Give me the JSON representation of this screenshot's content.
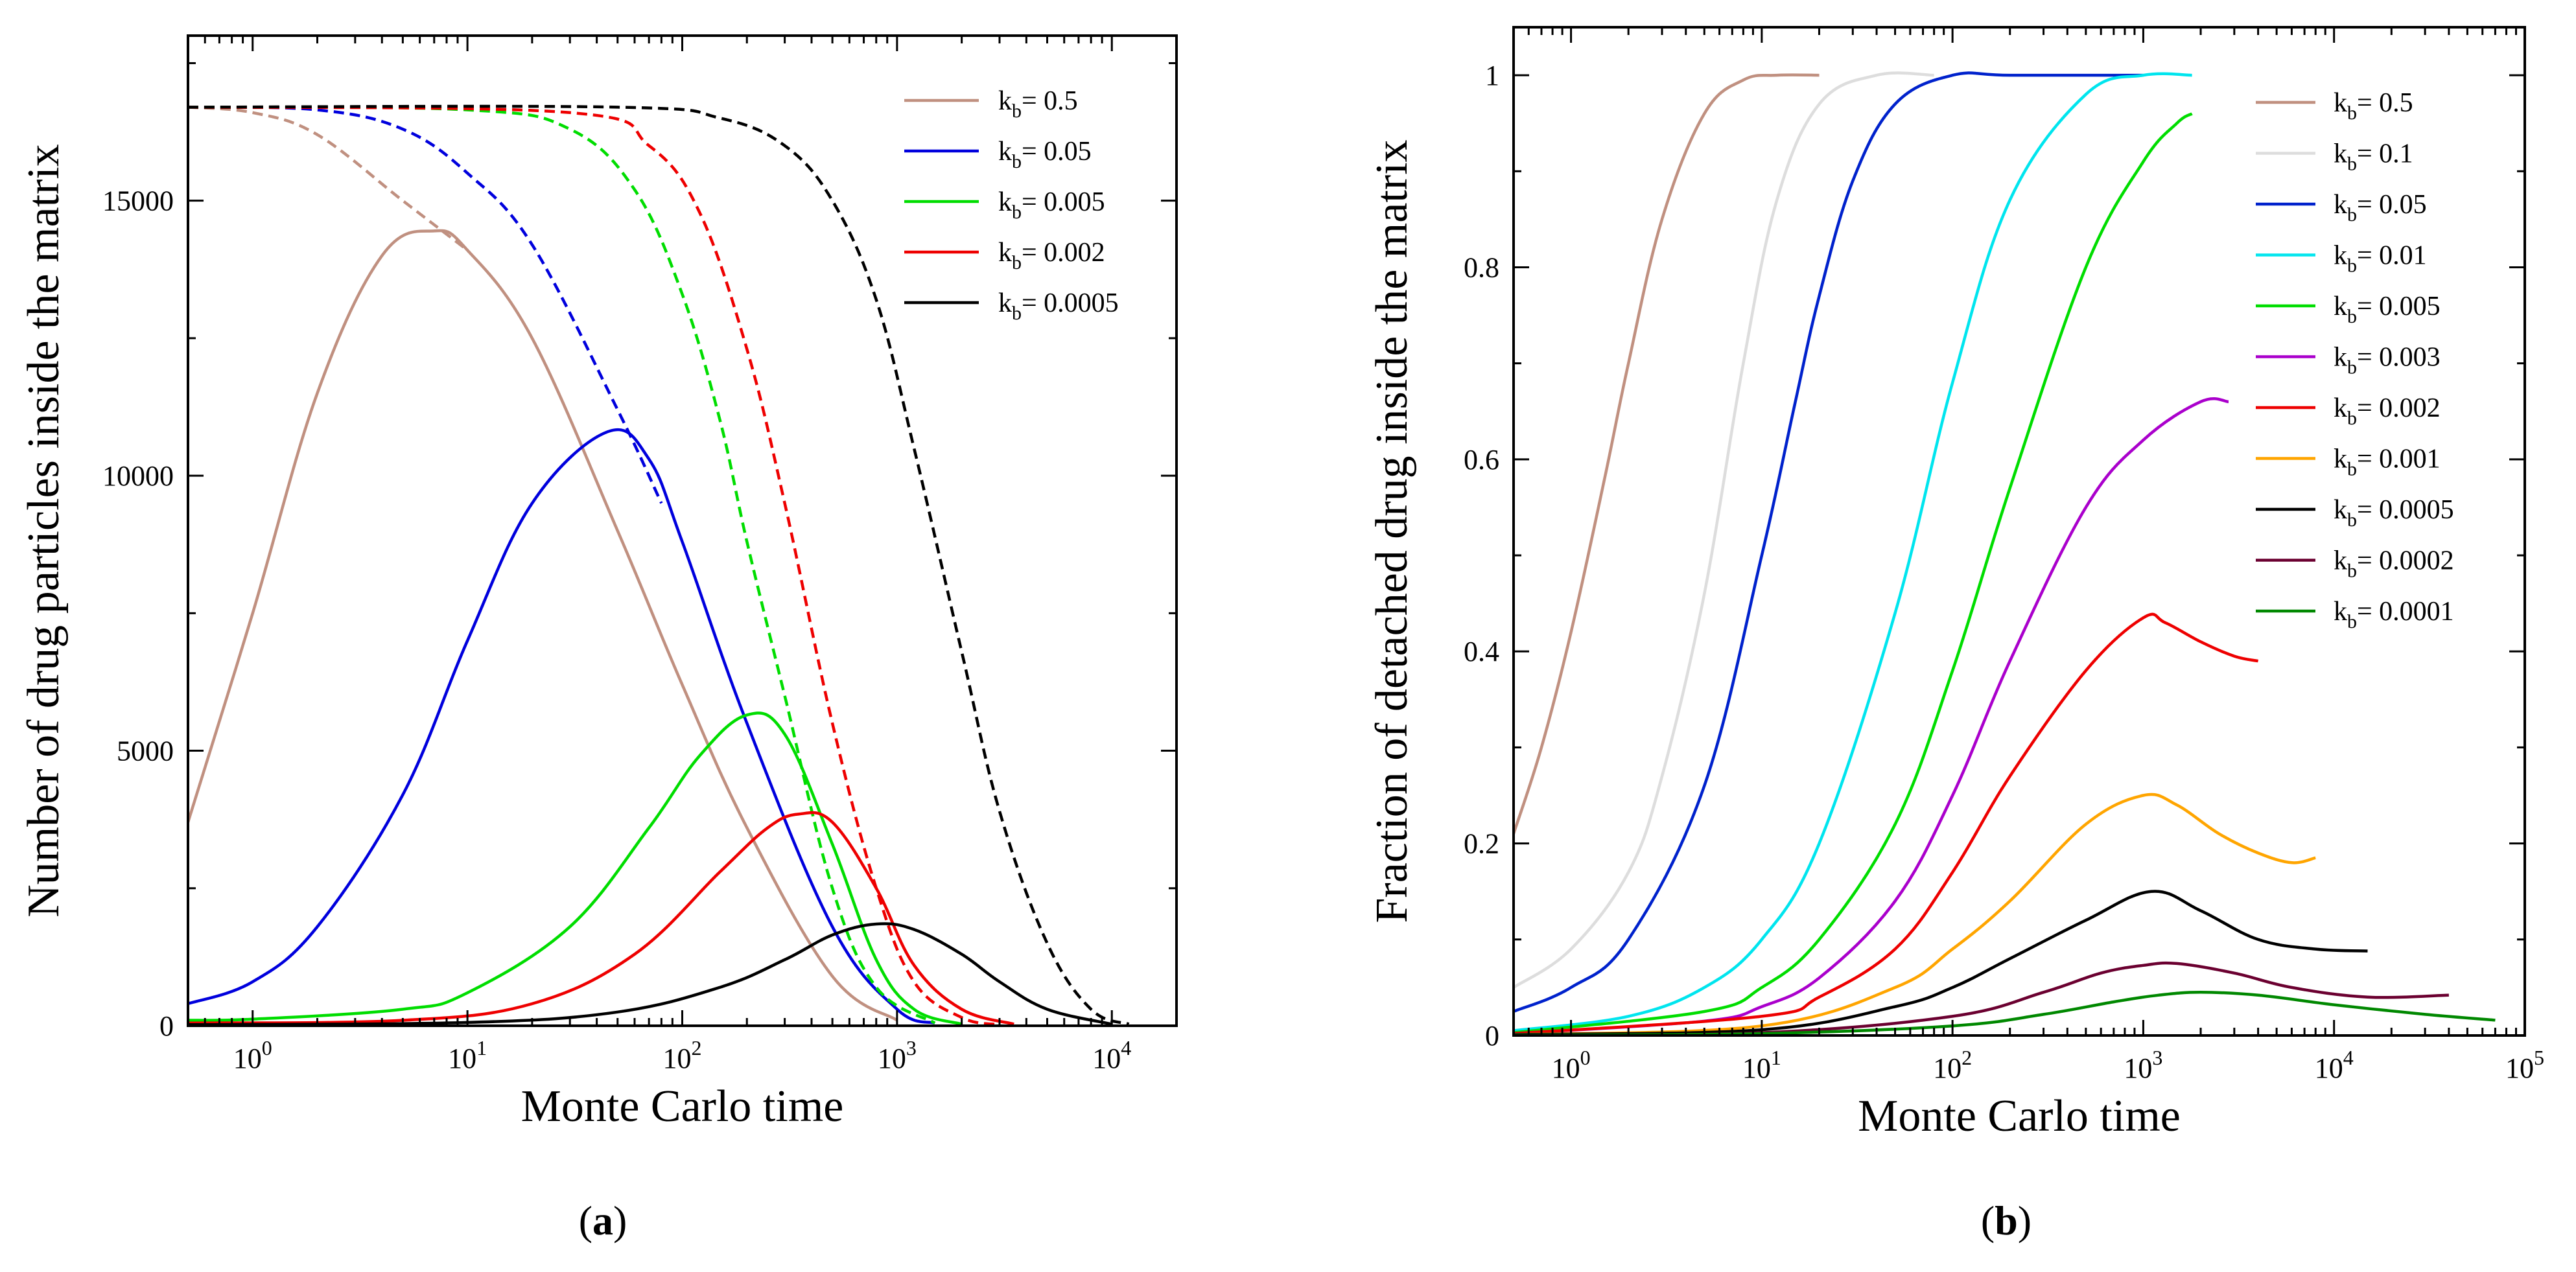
{
  "chart_data": [
    {
      "panel": "(a)",
      "panel_parts": [
        "(",
        "a",
        ")"
      ],
      "type": "line",
      "xscale": "log",
      "xlabel": "Monte Carlo time",
      "ylabel": "Number of drug particles inside the matrix",
      "xlim": [
        0.5,
        20000
      ],
      "ylim": [
        0,
        18000
      ],
      "xticks": [
        {
          "value": 1,
          "exp": "0"
        },
        {
          "value": 10,
          "exp": "1"
        },
        {
          "value": 100,
          "exp": "2"
        },
        {
          "value": 1000,
          "exp": "3"
        },
        {
          "value": 10000,
          "exp": "4"
        }
      ],
      "yticks": [
        {
          "value": 0,
          "label": "0"
        },
        {
          "value": 5000,
          "label": "5000"
        },
        {
          "value": 10000,
          "label": "10000"
        },
        {
          "value": 15000,
          "label": "15000"
        }
      ],
      "legend_position": "top-right",
      "legend": [
        {
          "name": "k",
          "sub": "b",
          "value": "= 0.5",
          "color": "#c09080"
        },
        {
          "name": "k",
          "sub": "b",
          "value": "= 0.05",
          "color": "#0000dd"
        },
        {
          "name": "k",
          "sub": "b",
          "value": "= 0.005",
          "color": "#00dd00"
        },
        {
          "name": "k",
          "sub": "b",
          "value": "= 0.002",
          "color": "#ee0000"
        },
        {
          "name": "k",
          "sub": "b",
          "value": "= 0.0005",
          "color": "#000000"
        }
      ],
      "series": [
        {
          "kb": 0.5,
          "color": "#c09080",
          "style": "solid",
          "x": [
            0.5,
            1,
            2,
            4,
            7,
            10,
            20,
            50,
            100,
            200,
            500,
            1000
          ],
          "y": [
            3700,
            7500,
            11500,
            14000,
            14450,
            14100,
            12500,
            9000,
            6200,
            3600,
            900,
            100
          ]
        },
        {
          "kb": 0.5,
          "color": "#c09080",
          "style": "dashed",
          "x": [
            0.5,
            1,
            2,
            5,
            10
          ],
          "y": [
            16700,
            16600,
            16200,
            15000,
            14100
          ]
        },
        {
          "kb": 0.05,
          "color": "#0000dd",
          "style": "solid",
          "x": [
            0.5,
            1,
            2,
            5,
            10,
            20,
            45,
            70,
            100,
            200,
            500,
            1000,
            1500
          ],
          "y": [
            400,
            800,
            1800,
            4200,
            7000,
            9500,
            10800,
            10300,
            8800,
            5500,
            1800,
            300,
            50
          ]
        },
        {
          "kb": 0.05,
          "color": "#0000dd",
          "style": "dashed",
          "x": [
            0.5,
            2,
            5,
            10,
            20,
            50,
            80
          ],
          "y": [
            16700,
            16650,
            16300,
            15500,
            14200,
            11200,
            9500
          ]
        },
        {
          "kb": 0.005,
          "color": "#00dd00",
          "style": "solid",
          "x": [
            0.5,
            1,
            5,
            10,
            30,
            70,
            120,
            200,
            300,
            500,
            800,
            1200,
            2000
          ],
          "y": [
            100,
            120,
            300,
            600,
            1800,
            3600,
            4900,
            5650,
            5300,
            3300,
            1200,
            300,
            30
          ]
        },
        {
          "kb": 0.005,
          "color": "#00dd00",
          "style": "dashed",
          "x": [
            0.5,
            10,
            30,
            60,
            100,
            150,
            200,
            300,
            500,
            800,
            1500
          ],
          "y": [
            16700,
            16650,
            16300,
            15200,
            13300,
            11000,
            8800,
            6000,
            2500,
            700,
            50
          ]
        },
        {
          "kb": 0.002,
          "color": "#ee0000",
          "style": "solid",
          "x": [
            0.5,
            5,
            20,
            60,
            150,
            250,
            350,
            500,
            800,
            1200,
            2000,
            3500
          ],
          "y": [
            50,
            100,
            400,
            1300,
            2800,
            3600,
            3850,
            3700,
            2500,
            1100,
            300,
            30
          ]
        },
        {
          "kb": 0.002,
          "color": "#ee0000",
          "style": "dashed",
          "x": [
            0.5,
            30,
            70,
            120,
            200,
            300,
            500,
            800,
            1200,
            2000,
            3000
          ],
          "y": [
            16700,
            16600,
            16000,
            14800,
            12300,
            9500,
            5500,
            2500,
            800,
            150,
            20
          ]
        },
        {
          "kb": 0.0005,
          "color": "#000000",
          "style": "solid",
          "x": [
            0.5,
            10,
            50,
            150,
            300,
            500,
            800,
            1200,
            2000,
            3000,
            5000,
            10000
          ],
          "y": [
            20,
            60,
            250,
            700,
            1200,
            1650,
            1850,
            1750,
            1300,
            800,
            300,
            30
          ]
        },
        {
          "kb": 0.0005,
          "color": "#000000",
          "style": "dashed",
          "x": [
            0.5,
            50,
            150,
            300,
            500,
            800,
            1200,
            2000,
            3000,
            5000,
            8000,
            12000
          ],
          "y": [
            16700,
            16700,
            16500,
            16000,
            15000,
            13200,
            10500,
            6800,
            3900,
            1500,
            300,
            30
          ]
        }
      ]
    },
    {
      "panel": "(b)",
      "panel_parts": [
        "(",
        "b",
        ")"
      ],
      "type": "line",
      "xscale": "log",
      "xlabel": "Monte Carlo time",
      "ylabel": "Fraction of detached drug inside the matrix",
      "xlim": [
        0.5,
        100000
      ],
      "ylim": [
        0,
        1.05
      ],
      "xticks": [
        {
          "value": 1,
          "exp": "0"
        },
        {
          "value": 10,
          "exp": "1"
        },
        {
          "value": 100,
          "exp": "2"
        },
        {
          "value": 1000,
          "exp": "3"
        },
        {
          "value": 10000,
          "exp": "4"
        },
        {
          "value": 100000,
          "exp": "5"
        }
      ],
      "yticks": [
        {
          "value": 0,
          "label": "0"
        },
        {
          "value": 0.2,
          "label": "0.2"
        },
        {
          "value": 0.4,
          "label": "0.4"
        },
        {
          "value": 0.6,
          "label": "0.6"
        },
        {
          "value": 0.8,
          "label": "0.8"
        },
        {
          "value": 1,
          "label": "1"
        }
      ],
      "legend_position": "top-right",
      "legend": [
        {
          "name": "k",
          "sub": "b",
          "value": "= 0.5",
          "color": "#c09080"
        },
        {
          "name": "k",
          "sub": "b",
          "value": "= 0.1",
          "color": "#dddddd"
        },
        {
          "name": "k",
          "sub": "b",
          "value": "= 0.05",
          "color": "#0022cc"
        },
        {
          "name": "k",
          "sub": "b",
          "value": "= 0.01",
          "color": "#00e5ee"
        },
        {
          "name": "k",
          "sub": "b",
          "value": "= 0.005",
          "color": "#00dd00"
        },
        {
          "name": "k",
          "sub": "b",
          "value": "= 0.003",
          "color": "#aa00cc"
        },
        {
          "name": "k",
          "sub": "b",
          "value": "= 0.002",
          "color": "#ee0000"
        },
        {
          "name": "k",
          "sub": "b",
          "value": "= 0.001",
          "color": "#ffa500"
        },
        {
          "name": "k",
          "sub": "b",
          "value": "= 0.0005",
          "color": "#000000"
        },
        {
          "name": "k",
          "sub": "b",
          "value": "= 0.0002",
          "color": "#6b0030"
        },
        {
          "name": "k",
          "sub": "b",
          "value": "= 0.0001",
          "color": "#008800"
        }
      ],
      "series": [
        {
          "kb": 0.5,
          "color": "#c09080",
          "x": [
            0.5,
            0.7,
            1,
            1.5,
            2,
            3,
            5,
            8,
            12,
            20
          ],
          "y": [
            0.21,
            0.3,
            0.42,
            0.58,
            0.7,
            0.85,
            0.96,
            0.995,
            1.0,
            1.0
          ]
        },
        {
          "kb": 0.1,
          "color": "#dddddd",
          "x": [
            0.5,
            1,
            2,
            3,
            5,
            8,
            12,
            20,
            40,
            80
          ],
          "y": [
            0.05,
            0.09,
            0.17,
            0.27,
            0.46,
            0.7,
            0.87,
            0.97,
            1.0,
            1.0
          ]
        },
        {
          "kb": 0.05,
          "color": "#0022cc",
          "x": [
            0.5,
            1,
            2,
            5,
            10,
            15,
            20,
            30,
            50,
            100,
            200,
            1000
          ],
          "y": [
            0.025,
            0.05,
            0.1,
            0.26,
            0.5,
            0.66,
            0.77,
            0.89,
            0.97,
            1.0,
            1.0,
            1.0
          ]
        },
        {
          "kb": 0.01,
          "color": "#00e5ee",
          "x": [
            0.5,
            2,
            5,
            10,
            20,
            50,
            100,
            200,
            500,
            1000,
            1800
          ],
          "y": [
            0.005,
            0.02,
            0.05,
            0.1,
            0.2,
            0.44,
            0.68,
            0.87,
            0.98,
            1.0,
            1.0
          ]
        },
        {
          "kb": 0.005,
          "color": "#00dd00",
          "x": [
            0.5,
            5,
            10,
            20,
            50,
            100,
            200,
            500,
            1000,
            1500,
            1800
          ],
          "y": [
            0.003,
            0.025,
            0.05,
            0.1,
            0.22,
            0.38,
            0.57,
            0.8,
            0.91,
            0.95,
            0.96
          ]
        },
        {
          "kb": 0.003,
          "color": "#aa00cc",
          "x": [
            0.5,
            5,
            10,
            20,
            50,
            100,
            200,
            500,
            1000,
            2000,
            2800
          ],
          "y": [
            0.002,
            0.015,
            0.03,
            0.06,
            0.14,
            0.25,
            0.39,
            0.55,
            0.62,
            0.66,
            0.66
          ]
        },
        {
          "kb": 0.002,
          "color": "#ee0000",
          "x": [
            0.5,
            10,
            20,
            50,
            100,
            200,
            500,
            1000,
            1300,
            2000,
            3000,
            4000
          ],
          "y": [
            0.002,
            0.02,
            0.04,
            0.09,
            0.17,
            0.27,
            0.38,
            0.435,
            0.43,
            0.41,
            0.395,
            0.39
          ]
        },
        {
          "kb": 0.001,
          "color": "#ffa500",
          "x": [
            0.5,
            10,
            50,
            100,
            200,
            500,
            1000,
            1500,
            2500,
            4000,
            6000,
            8000
          ],
          "y": [
            0.001,
            0.01,
            0.05,
            0.09,
            0.14,
            0.22,
            0.25,
            0.24,
            0.21,
            0.19,
            0.18,
            0.185
          ]
        },
        {
          "kb": 0.0005,
          "color": "#000000",
          "x": [
            0.5,
            10,
            50,
            100,
            200,
            500,
            1100,
            2000,
            4000,
            8000,
            15000
          ],
          "y": [
            0.001,
            0.006,
            0.03,
            0.05,
            0.08,
            0.12,
            0.15,
            0.13,
            0.1,
            0.09,
            0.088
          ]
        },
        {
          "kb": 0.0002,
          "color": "#6b0030",
          "x": [
            0.5,
            10,
            100,
            300,
            600,
            1000,
            1500,
            3000,
            6000,
            15000,
            40000
          ],
          "y": [
            0.0005,
            0.003,
            0.02,
            0.045,
            0.065,
            0.073,
            0.075,
            0.065,
            0.05,
            0.04,
            0.042
          ]
        },
        {
          "kb": 0.0001,
          "color": "#008800",
          "x": [
            0.5,
            10,
            100,
            300,
            700,
            1200,
            2000,
            4000,
            10000,
            30000,
            70000
          ],
          "y": [
            0.0003,
            0.002,
            0.01,
            0.022,
            0.035,
            0.042,
            0.045,
            0.042,
            0.032,
            0.022,
            0.016
          ]
        }
      ]
    }
  ]
}
